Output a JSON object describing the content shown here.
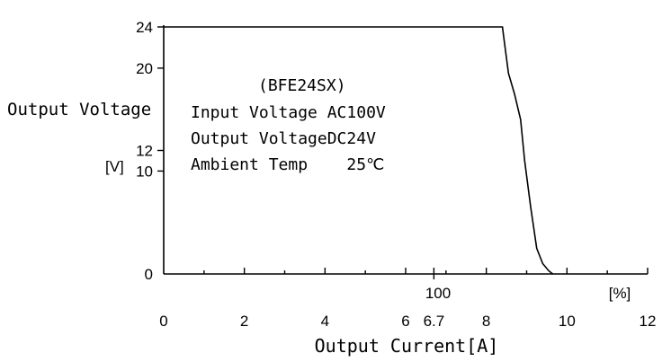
{
  "chart_data": {
    "type": "line",
    "title": "",
    "xlabel": "Output Current[A]",
    "ylabel": "Output Voltage",
    "ylabel_unit": "[V]",
    "xlim": [
      0,
      12
    ],
    "ylim": [
      0,
      24
    ],
    "x_ticks": [
      {
        "value": 0,
        "label": "0"
      },
      {
        "value": 2,
        "label": "2"
      },
      {
        "value": 4,
        "label": "4"
      },
      {
        "value": 6,
        "label": "6"
      },
      {
        "value": 6.7,
        "label": "6.7"
      },
      {
        "value": 8,
        "label": "8"
      },
      {
        "value": 10,
        "label": "10"
      },
      {
        "value": 12,
        "label": "12"
      }
    ],
    "x_minor_ticks": [
      1,
      3,
      5,
      7,
      9,
      11
    ],
    "y_ticks": [
      {
        "value": 0,
        "label": "0"
      },
      {
        "value": 10,
        "label": "10"
      },
      {
        "value": 12,
        "label": "12"
      },
      {
        "value": 20,
        "label": "20"
      },
      {
        "value": 24,
        "label": "24"
      }
    ],
    "percent_marker": {
      "x": 6.7,
      "label": "100",
      "unit": "[%]"
    },
    "annotations": [
      "(BFE24SX)",
      "Input Voltage AC100V",
      "Output VoltageDC24V",
      "Ambient Temp    25℃"
    ],
    "grid": false,
    "series": [
      {
        "x": [
          0,
          8.4,
          8.45,
          8.55,
          8.7,
          8.85,
          8.95,
          9.1,
          9.25,
          9.4,
          9.55,
          9.65
        ],
        "y": [
          24,
          24,
          22.5,
          19.5,
          17.5,
          15,
          11,
          6.5,
          2.5,
          1,
          0.3,
          0
        ]
      }
    ]
  }
}
